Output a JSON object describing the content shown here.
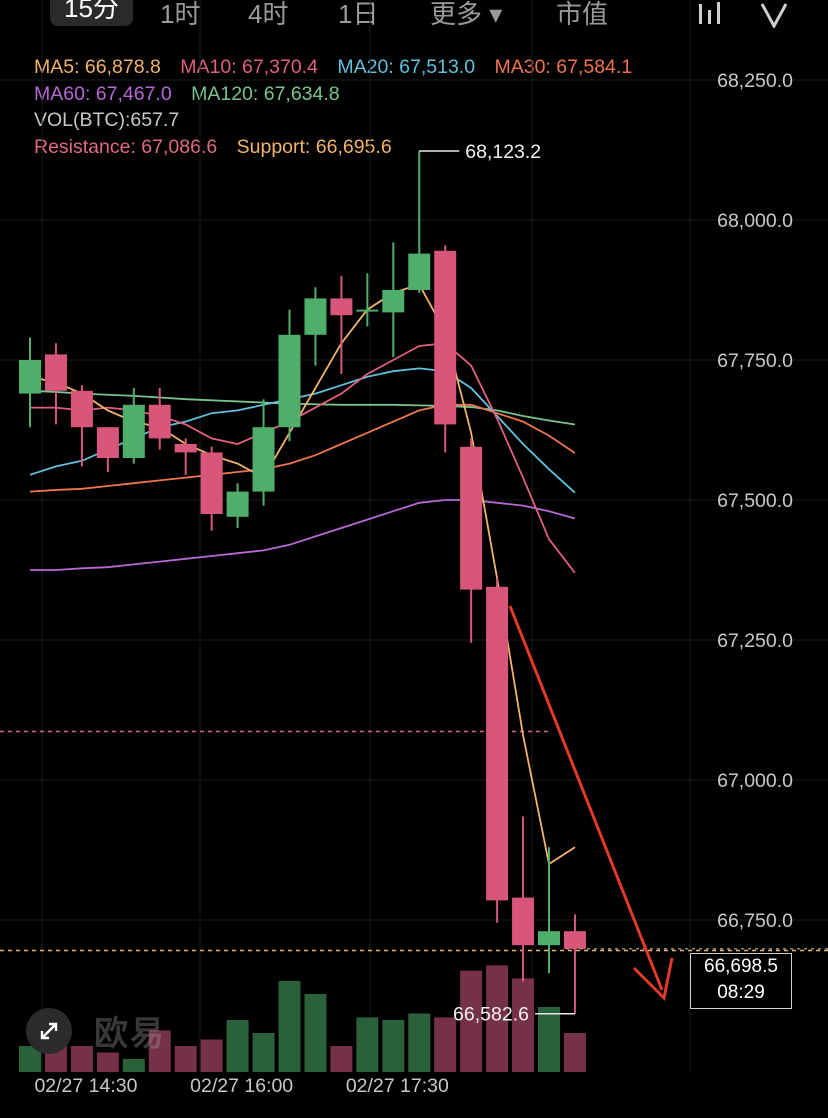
{
  "topbar": {
    "tabs": [
      "15分",
      "1时",
      "4时",
      "1日",
      "更多 ▾",
      "市值"
    ],
    "icons": [
      "bar-chart-icon",
      "shield-icon"
    ]
  },
  "legend": {
    "ma5": "MA5: 66,878.8",
    "ma10": "MA10: 67,370.4",
    "ma20": "MA20: 67,513.0",
    "ma30": "MA30: 67,584.1",
    "ma60": "MA60: 67,467.0",
    "ma120": "MA120: 67,634.8",
    "vol": "VOL(BTC):657.7",
    "resistance": "Resistance: 67,086.6",
    "support": "Support: 66,695.6"
  },
  "price_tag": {
    "price": "66,698.5",
    "countdown": "08:29"
  },
  "watermark": "欧易",
  "colors": {
    "up": "#4fae6a",
    "down": "#d9567b",
    "ma5": "#f2b36b",
    "ma10": "#e0607e",
    "ma20": "#62c0dc",
    "ma30": "#f0744e",
    "ma60": "#b868d6",
    "ma120": "#79c48c",
    "resistance": "#e06a7e",
    "support": "#f2b36b",
    "arrow": "#e03a2a"
  },
  "chart_data": {
    "type": "candlestick",
    "y_ticks": [
      "68,250.0",
      "68,000.0",
      "67,750.0",
      "67,500.0",
      "67,250.0",
      "67,000.0",
      "66,750.0"
    ],
    "y_tick_values": [
      68250,
      68000,
      67750,
      67500,
      67250,
      67000,
      66750
    ],
    "x_labels": [
      "02/27 14:30",
      "02/27 16:00",
      "02/27 17:30"
    ],
    "x_label_candle_index": [
      1,
      7,
      13
    ],
    "high_label": "68,123.2",
    "low_label": "66,582.6",
    "resistance": 67086.6,
    "support": 66695.6,
    "candles": [
      {
        "o": 67690,
        "h": 67790,
        "c": 67750,
        "l": 67630
      },
      {
        "o": 67760,
        "h": 67780,
        "c": 67695,
        "l": 67635
      },
      {
        "o": 67695,
        "h": 67705,
        "c": 67630,
        "l": 67560
      },
      {
        "o": 67630,
        "h": 67630,
        "c": 67575,
        "l": 67550
      },
      {
        "o": 67575,
        "h": 67700,
        "c": 67670,
        "l": 67565
      },
      {
        "o": 67670,
        "h": 67700,
        "c": 67610,
        "l": 67590
      },
      {
        "o": 67600,
        "h": 67610,
        "c": 67585,
        "l": 67545
      },
      {
        "o": 67585,
        "h": 67595,
        "c": 67475,
        "l": 67445
      },
      {
        "o": 67470,
        "h": 67530,
        "c": 67515,
        "l": 67450
      },
      {
        "o": 67515,
        "h": 67680,
        "c": 67630,
        "l": 67490
      },
      {
        "o": 67630,
        "h": 67840,
        "c": 67795,
        "l": 67605
      },
      {
        "o": 67795,
        "h": 67880,
        "c": 67860,
        "l": 67740
      },
      {
        "o": 67860,
        "h": 67900,
        "c": 67830,
        "l": 67725
      },
      {
        "o": 67840,
        "h": 67905,
        "c": 67840,
        "l": 67810
      },
      {
        "o": 67835,
        "h": 67960,
        "c": 67875,
        "l": 67755
      },
      {
        "o": 67875,
        "h": 68123.2,
        "c": 67940,
        "l": 67870
      },
      {
        "o": 67945,
        "h": 67955,
        "c": 67635,
        "l": 67585
      },
      {
        "o": 67595,
        "h": 67610,
        "c": 67340,
        "l": 67245
      },
      {
        "o": 67345,
        "h": 67360,
        "c": 66785,
        "l": 66745
      },
      {
        "o": 66790,
        "h": 66935,
        "c": 66705,
        "l": 66640
      },
      {
        "o": 66705,
        "h": 66880,
        "c": 66730,
        "l": 66655
      },
      {
        "o": 66730,
        "h": 66760,
        "c": 66698.5,
        "l": 66582.6
      }
    ],
    "volume": [
      20,
      35,
      20,
      15,
      10,
      32,
      20,
      25,
      40,
      30,
      70,
      60,
      20,
      42,
      40,
      45,
      42,
      78,
      82,
      72,
      50,
      30
    ],
    "ma_lines": {
      "ma5": [
        67720,
        67710,
        67690,
        67660,
        67640,
        67630,
        67600,
        67580,
        67565,
        67540,
        67620,
        67700,
        67780,
        67840,
        67870,
        67885,
        67800,
        67620,
        67360,
        67080,
        66850,
        66880
      ],
      "ma10": [
        67665,
        67665,
        67660,
        67665,
        67660,
        67650,
        67635,
        67610,
        67600,
        67620,
        67640,
        67665,
        67690,
        67725,
        67750,
        67775,
        67780,
        67740,
        67645,
        67540,
        67430,
        67370
      ],
      "ma20": [
        67545,
        67560,
        67570,
        67590,
        67610,
        67630,
        67640,
        67655,
        67660,
        67670,
        67680,
        67690,
        67705,
        67720,
        67730,
        67735,
        67730,
        67700,
        67650,
        67600,
        67555,
        67513
      ],
      "ma30": [
        67515,
        67518,
        67520,
        67525,
        67530,
        67535,
        67540,
        67545,
        67550,
        67555,
        67565,
        67580,
        67600,
        67620,
        67640,
        67660,
        67670,
        67670,
        67655,
        67640,
        67615,
        67584
      ],
      "ma60": [
        67375,
        67375,
        67378,
        67380,
        67385,
        67390,
        67395,
        67400,
        67405,
        67410,
        67420,
        67435,
        67450,
        67465,
        67480,
        67495,
        67500,
        67500,
        67495,
        67490,
        67480,
        67467
      ],
      "ma120": [
        67695,
        67693,
        67690,
        67688,
        67686,
        67683,
        67680,
        67678,
        67676,
        67674,
        67672,
        67671,
        67670,
        67670,
        67670,
        67669,
        67668,
        67666,
        67660,
        67650,
        67642,
        67634.8
      ]
    }
  }
}
